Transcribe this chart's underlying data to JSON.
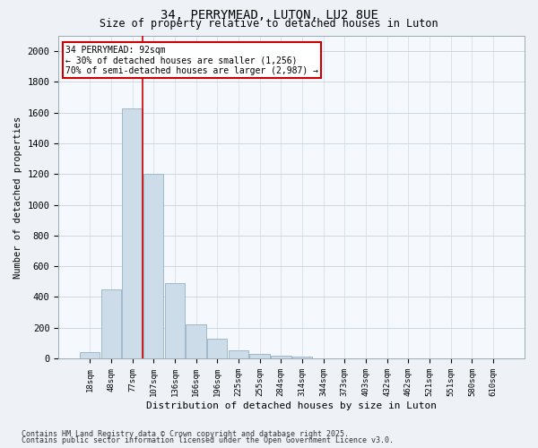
{
  "title1": "34, PERRYMEAD, LUTON, LU2 8UE",
  "title2": "Size of property relative to detached houses in Luton",
  "xlabel": "Distribution of detached houses by size in Luton",
  "ylabel": "Number of detached properties",
  "categories": [
    "18sqm",
    "48sqm",
    "77sqm",
    "107sqm",
    "136sqm",
    "166sqm",
    "196sqm",
    "225sqm",
    "255sqm",
    "284sqm",
    "314sqm",
    "344sqm",
    "373sqm",
    "403sqm",
    "432sqm",
    "462sqm",
    "521sqm",
    "551sqm",
    "580sqm",
    "610sqm"
  ],
  "values": [
    40,
    450,
    1630,
    1200,
    490,
    220,
    130,
    50,
    30,
    15,
    10,
    0,
    0,
    0,
    0,
    0,
    0,
    0,
    0,
    0
  ],
  "bar_color": "#ccdce8",
  "bar_edge_color": "#a0b8cc",
  "red_line_x": 2.48,
  "annotation_text": "34 PERRYMEAD: 92sqm\n← 30% of detached houses are smaller (1,256)\n70% of semi-detached houses are larger (2,987) →",
  "annotation_box_color": "#ffffff",
  "annotation_box_edge": "#cc0000",
  "red_line_color": "#cc0000",
  "ylim": [
    0,
    2100
  ],
  "yticks": [
    0,
    200,
    400,
    600,
    800,
    1000,
    1200,
    1400,
    1600,
    1800,
    2000
  ],
  "footer1": "Contains HM Land Registry data © Crown copyright and database right 2025.",
  "footer2": "Contains public sector information licensed under the Open Government Licence v3.0.",
  "bg_color": "#eef2f7",
  "plot_bg_color": "#f5f8fc",
  "grid_color": "#c8d4df"
}
